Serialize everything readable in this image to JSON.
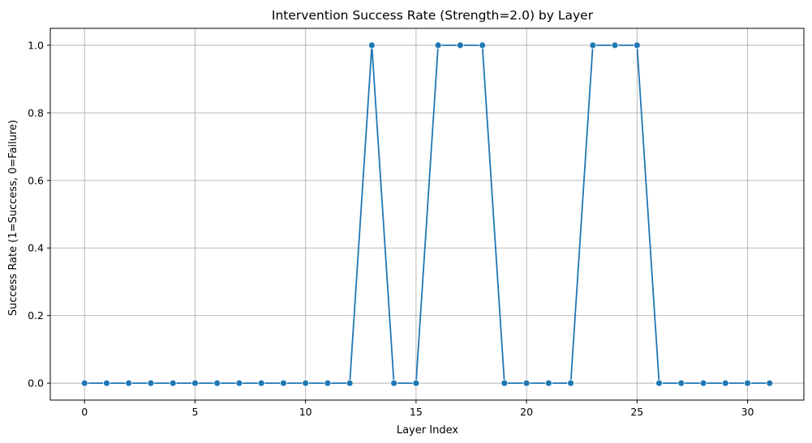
{
  "chart_data": {
    "type": "line",
    "title": "Intervention Success Rate (Strength=2.0) by Layer",
    "xlabel": "Layer Index",
    "ylabel": "Success Rate (1=Success, 0=Failure)",
    "xlim": [
      -1.55,
      32.55
    ],
    "ylim": [
      -0.05,
      1.05
    ],
    "xticks": [
      0,
      5,
      10,
      15,
      20,
      25,
      30
    ],
    "yticks": [
      0.0,
      0.2,
      0.4,
      0.6,
      0.8,
      1.0
    ],
    "ytick_labels": [
      "0.0",
      "0.2",
      "0.4",
      "0.6",
      "0.8",
      "1.0"
    ],
    "grid": true,
    "marker": "circle",
    "color": "#1f77b4",
    "series": [
      {
        "x": [
          0,
          1,
          2,
          3,
          4,
          5,
          6,
          7,
          8,
          9,
          10,
          11,
          12,
          13,
          14,
          15,
          16,
          17,
          18,
          19,
          20,
          21,
          22,
          23,
          24,
          25,
          26,
          27,
          28,
          29,
          30,
          31
        ],
        "values": [
          0,
          0,
          0,
          0,
          0,
          0,
          0,
          0,
          0,
          0,
          0,
          0,
          0,
          1,
          0,
          0,
          1,
          1,
          1,
          0,
          0,
          0,
          0,
          1,
          1,
          1,
          0,
          0,
          0,
          0,
          0,
          0
        ]
      }
    ]
  }
}
